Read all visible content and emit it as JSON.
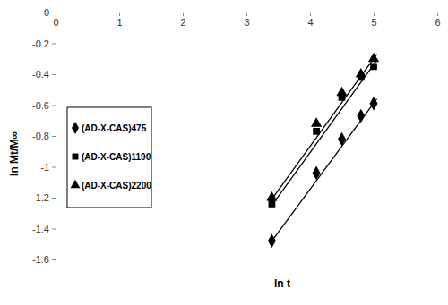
{
  "chart_data": {
    "type": "scatter",
    "x_label": "ln t",
    "y_label": "ln Mt/M∞",
    "xlim": [
      0,
      6
    ],
    "xticks": [
      0,
      1,
      2,
      3,
      4,
      5,
      6
    ],
    "ylim": [
      -1.6,
      0
    ],
    "yticks": [
      0,
      -0.2,
      -0.4,
      -0.6,
      -0.8,
      -1,
      -1.2,
      -1.4,
      -1.6
    ],
    "grid": false,
    "legend": "left",
    "series": [
      {
        "name": "(AD-X-CAS)475",
        "color": "#000000",
        "marker": "diamond",
        "x": [
          3.4,
          4.1,
          4.5,
          4.8,
          5.0
        ],
        "values": [
          -1.48,
          -1.04,
          -0.82,
          -0.67,
          -0.59
        ],
        "trendline": {
          "x": [
            3.4,
            5.05
          ],
          "values": [
            -1.48,
            -0.56
          ]
        }
      },
      {
        "name": "(AD-X-CAS)1190",
        "color": "#000000",
        "marker": "square",
        "x": [
          3.4,
          4.1,
          4.5,
          4.8,
          5.0
        ],
        "values": [
          -1.24,
          -0.77,
          -0.55,
          -0.42,
          -0.35
        ],
        "trendline": {
          "x": [
            3.4,
            5.05
          ],
          "values": [
            -1.25,
            -0.31
          ]
        }
      },
      {
        "name": "(AD-X-CAS)2200",
        "color": "#000000",
        "marker": "triangle",
        "x": [
          3.4,
          4.1,
          4.5,
          4.8,
          5.0
        ],
        "values": [
          -1.2,
          -0.72,
          -0.52,
          -0.4,
          -0.3
        ],
        "trendline": {
          "x": [
            3.4,
            5.05
          ],
          "values": [
            -1.21,
            -0.27
          ]
        }
      }
    ]
  }
}
